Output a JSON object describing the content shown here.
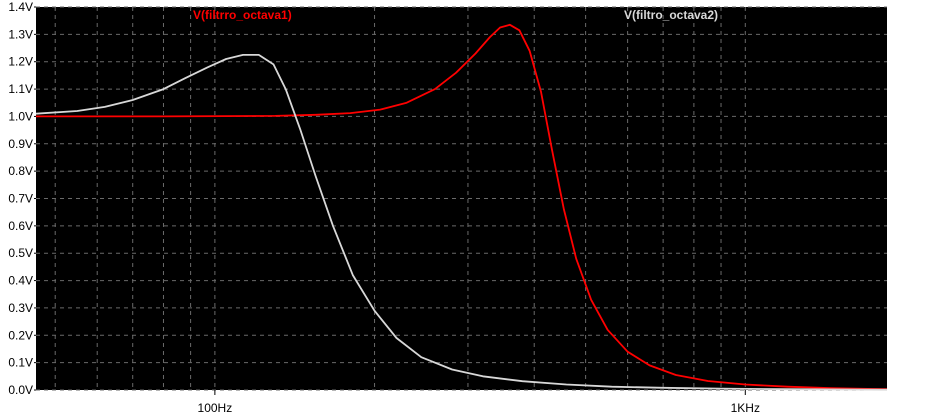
{
  "colors": {
    "background": "#ffffff",
    "plot_background": "#000000",
    "grid": "#6a6a6a",
    "axis_text": "#000000"
  },
  "chart_data": {
    "type": "line",
    "title": "",
    "xlabel": "",
    "ylabel": "",
    "x_scale": "log",
    "x_unit": "Hz",
    "xlim": [
      46,
      1850
    ],
    "ylim": [
      0,
      1.4
    ],
    "grid": true,
    "x_ticks": [
      {
        "value": 100,
        "label": "100Hz"
      },
      {
        "value": 1000,
        "label": "1KHz"
      }
    ],
    "y_ticks": [
      {
        "value": 0.0,
        "label": "0.0V"
      },
      {
        "value": 0.1,
        "label": "0.1V"
      },
      {
        "value": 0.2,
        "label": "0.2V"
      },
      {
        "value": 0.3,
        "label": "0.3V"
      },
      {
        "value": 0.4,
        "label": "0.4V"
      },
      {
        "value": 0.5,
        "label": "0.5V"
      },
      {
        "value": 0.6,
        "label": "0.6V"
      },
      {
        "value": 0.7,
        "label": "0.7V"
      },
      {
        "value": 0.8,
        "label": "0.8V"
      },
      {
        "value": 0.9,
        "label": "0.9V"
      },
      {
        "value": 1.0,
        "label": "1.0V"
      },
      {
        "value": 1.1,
        "label": "1.1V"
      },
      {
        "value": 1.2,
        "label": "1.2V"
      },
      {
        "value": 1.3,
        "label": "1.3V"
      },
      {
        "value": 1.4,
        "label": "1.4V"
      }
    ],
    "series": [
      {
        "name": "V(filtrro_octava1)",
        "color": "#ff0000",
        "legend_position": "top-left",
        "points": [
          [
            46,
            1.0
          ],
          [
            80,
            1.0
          ],
          [
            130,
            1.002
          ],
          [
            155,
            1.006
          ],
          [
            180,
            1.012
          ],
          [
            205,
            1.025
          ],
          [
            230,
            1.05
          ],
          [
            260,
            1.1
          ],
          [
            285,
            1.16
          ],
          [
            310,
            1.23
          ],
          [
            330,
            1.29
          ],
          [
            345,
            1.325
          ],
          [
            360,
            1.335
          ],
          [
            375,
            1.315
          ],
          [
            392,
            1.24
          ],
          [
            412,
            1.09
          ],
          [
            432,
            0.88
          ],
          [
            455,
            0.66
          ],
          [
            480,
            0.48
          ],
          [
            512,
            0.33
          ],
          [
            550,
            0.22
          ],
          [
            600,
            0.14
          ],
          [
            660,
            0.09
          ],
          [
            740,
            0.055
          ],
          [
            850,
            0.033
          ],
          [
            1000,
            0.02
          ],
          [
            1200,
            0.012
          ],
          [
            1450,
            0.007
          ],
          [
            1700,
            0.004
          ],
          [
            1850,
            0.003
          ]
        ]
      },
      {
        "name": "V(filtro_octava2)",
        "color": "#d8d8d8",
        "legend_position": "top-right",
        "points": [
          [
            46,
            1.01
          ],
          [
            55,
            1.02
          ],
          [
            62,
            1.035
          ],
          [
            70,
            1.06
          ],
          [
            80,
            1.1
          ],
          [
            88,
            1.14
          ],
          [
            97,
            1.18
          ],
          [
            105,
            1.21
          ],
          [
            113,
            1.225
          ],
          [
            121,
            1.225
          ],
          [
            129,
            1.19
          ],
          [
            136,
            1.1
          ],
          [
            145,
            0.95
          ],
          [
            155,
            0.78
          ],
          [
            167,
            0.6
          ],
          [
            182,
            0.42
          ],
          [
            200,
            0.29
          ],
          [
            220,
            0.19
          ],
          [
            245,
            0.12
          ],
          [
            280,
            0.075
          ],
          [
            320,
            0.05
          ],
          [
            380,
            0.032
          ],
          [
            460,
            0.02
          ],
          [
            560,
            0.012
          ],
          [
            700,
            0.008
          ],
          [
            900,
            0.005
          ],
          [
            1200,
            0.003
          ],
          [
            1600,
            0.002
          ],
          [
            1850,
            0.001
          ]
        ]
      }
    ]
  }
}
